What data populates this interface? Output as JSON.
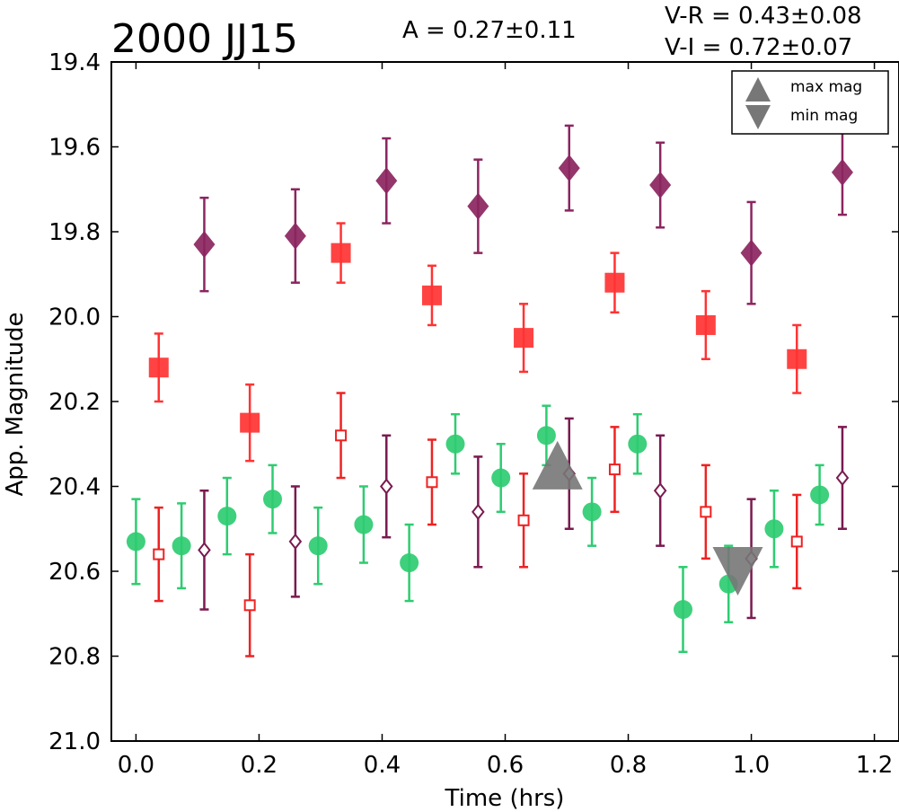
{
  "chart_data": {
    "type": "scatter",
    "title": "2000 JJ15",
    "xlabel": "Time (hrs)",
    "ylabel": "App. Magnitude",
    "xlim": [
      -0.04,
      1.24
    ],
    "ylim": [
      21.0,
      19.4
    ],
    "y_inverted": true,
    "xticks": [
      "0.0",
      "0.2",
      "0.4",
      "0.6",
      "0.8",
      "1.0",
      "1.2"
    ],
    "xtick_values": [
      0.0,
      0.2,
      0.4,
      0.6,
      0.8,
      1.0,
      1.2
    ],
    "yticks": [
      "19.4",
      "19.6",
      "19.8",
      "20.0",
      "20.2",
      "20.4",
      "20.6",
      "20.8",
      "21.0"
    ],
    "ytick_values": [
      19.4,
      19.6,
      19.8,
      20.0,
      20.2,
      20.4,
      20.6,
      20.8,
      21.0
    ],
    "annotations": {
      "amplitude": "A  = 0.27±0.11",
      "v_r": "V-R = 0.43±0.08",
      "v_i": "V-I  = 0.72±0.07"
    },
    "legend": {
      "placement": "top-right",
      "entries": [
        {
          "label": "max mag",
          "marker": "triangle-up",
          "color": "#777777"
        },
        {
          "label": "min mag",
          "marker": "triangle-down",
          "color": "#777777"
        }
      ]
    },
    "series": [
      {
        "marker": "circle",
        "filled": true,
        "color": "#2ecc71",
        "points": [
          {
            "x": 0.0,
            "y": 20.53,
            "err": 0.1
          },
          {
            "x": 0.074,
            "y": 20.54,
            "err": 0.1
          },
          {
            "x": 0.148,
            "y": 20.47,
            "err": 0.09
          },
          {
            "x": 0.222,
            "y": 20.43,
            "err": 0.08
          },
          {
            "x": 0.296,
            "y": 20.54,
            "err": 0.09
          },
          {
            "x": 0.37,
            "y": 20.49,
            "err": 0.09
          },
          {
            "x": 0.444,
            "y": 20.58,
            "err": 0.09
          },
          {
            "x": 0.519,
            "y": 20.3,
            "err": 0.07
          },
          {
            "x": 0.593,
            "y": 20.38,
            "err": 0.08
          },
          {
            "x": 0.667,
            "y": 20.28,
            "err": 0.07
          },
          {
            "x": 0.741,
            "y": 20.46,
            "err": 0.08
          },
          {
            "x": 0.815,
            "y": 20.3,
            "err": 0.07
          },
          {
            "x": 0.889,
            "y": 20.69,
            "err": 0.1
          },
          {
            "x": 0.963,
            "y": 20.63,
            "err": 0.09
          },
          {
            "x": 1.037,
            "y": 20.5,
            "err": 0.09
          },
          {
            "x": 1.111,
            "y": 20.42,
            "err": 0.07
          }
        ]
      },
      {
        "marker": "square",
        "filled": true,
        "color": "#ff3333",
        "points": [
          {
            "x": 0.037,
            "y": 20.12,
            "err": 0.08
          },
          {
            "x": 0.185,
            "y": 20.25,
            "err": 0.09
          },
          {
            "x": 0.333,
            "y": 19.85,
            "err": 0.07
          },
          {
            "x": 0.481,
            "y": 19.95,
            "err": 0.07
          },
          {
            "x": 0.63,
            "y": 20.05,
            "err": 0.08
          },
          {
            "x": 0.778,
            "y": 19.92,
            "err": 0.07
          },
          {
            "x": 0.926,
            "y": 20.02,
            "err": 0.08
          },
          {
            "x": 1.074,
            "y": 20.1,
            "err": 0.08
          }
        ]
      },
      {
        "marker": "square",
        "filled": false,
        "color": "#ee2222",
        "points": [
          {
            "x": 0.037,
            "y": 20.56,
            "err": 0.11
          },
          {
            "x": 0.185,
            "y": 20.68,
            "err": 0.12
          },
          {
            "x": 0.333,
            "y": 20.28,
            "err": 0.1
          },
          {
            "x": 0.481,
            "y": 20.39,
            "err": 0.1
          },
          {
            "x": 0.63,
            "y": 20.48,
            "err": 0.11
          },
          {
            "x": 0.778,
            "y": 20.36,
            "err": 0.1
          },
          {
            "x": 0.926,
            "y": 20.46,
            "err": 0.11
          },
          {
            "x": 1.074,
            "y": 20.53,
            "err": 0.11
          }
        ]
      },
      {
        "marker": "diamond",
        "filled": true,
        "color": "#8b2560",
        "points": [
          {
            "x": 0.111,
            "y": 19.83,
            "err": 0.11
          },
          {
            "x": 0.259,
            "y": 19.81,
            "err": 0.11
          },
          {
            "x": 0.407,
            "y": 19.68,
            "err": 0.1
          },
          {
            "x": 0.556,
            "y": 19.74,
            "err": 0.11
          },
          {
            "x": 0.704,
            "y": 19.65,
            "err": 0.1
          },
          {
            "x": 0.852,
            "y": 19.69,
            "err": 0.1
          },
          {
            "x": 1.0,
            "y": 19.85,
            "err": 0.12
          },
          {
            "x": 1.148,
            "y": 19.66,
            "err": 0.1
          }
        ]
      },
      {
        "marker": "diamond",
        "filled": false,
        "color": "#7a1a50",
        "points": [
          {
            "x": 0.111,
            "y": 20.55,
            "err": 0.14
          },
          {
            "x": 0.259,
            "y": 20.53,
            "err": 0.13
          },
          {
            "x": 0.407,
            "y": 20.4,
            "err": 0.12
          },
          {
            "x": 0.556,
            "y": 20.46,
            "err": 0.13
          },
          {
            "x": 0.704,
            "y": 20.37,
            "err": 0.13
          },
          {
            "x": 0.852,
            "y": 20.41,
            "err": 0.13
          },
          {
            "x": 1.0,
            "y": 20.57,
            "err": 0.14
          },
          {
            "x": 1.148,
            "y": 20.38,
            "err": 0.12
          }
        ]
      },
      {
        "marker": "triangle-up",
        "filled": true,
        "color": "#777777",
        "points": [
          {
            "x": 0.685,
            "y": 20.35
          }
        ]
      },
      {
        "marker": "triangle-down",
        "filled": true,
        "color": "#777777",
        "points": [
          {
            "x": 0.978,
            "y": 20.6
          }
        ]
      }
    ]
  }
}
